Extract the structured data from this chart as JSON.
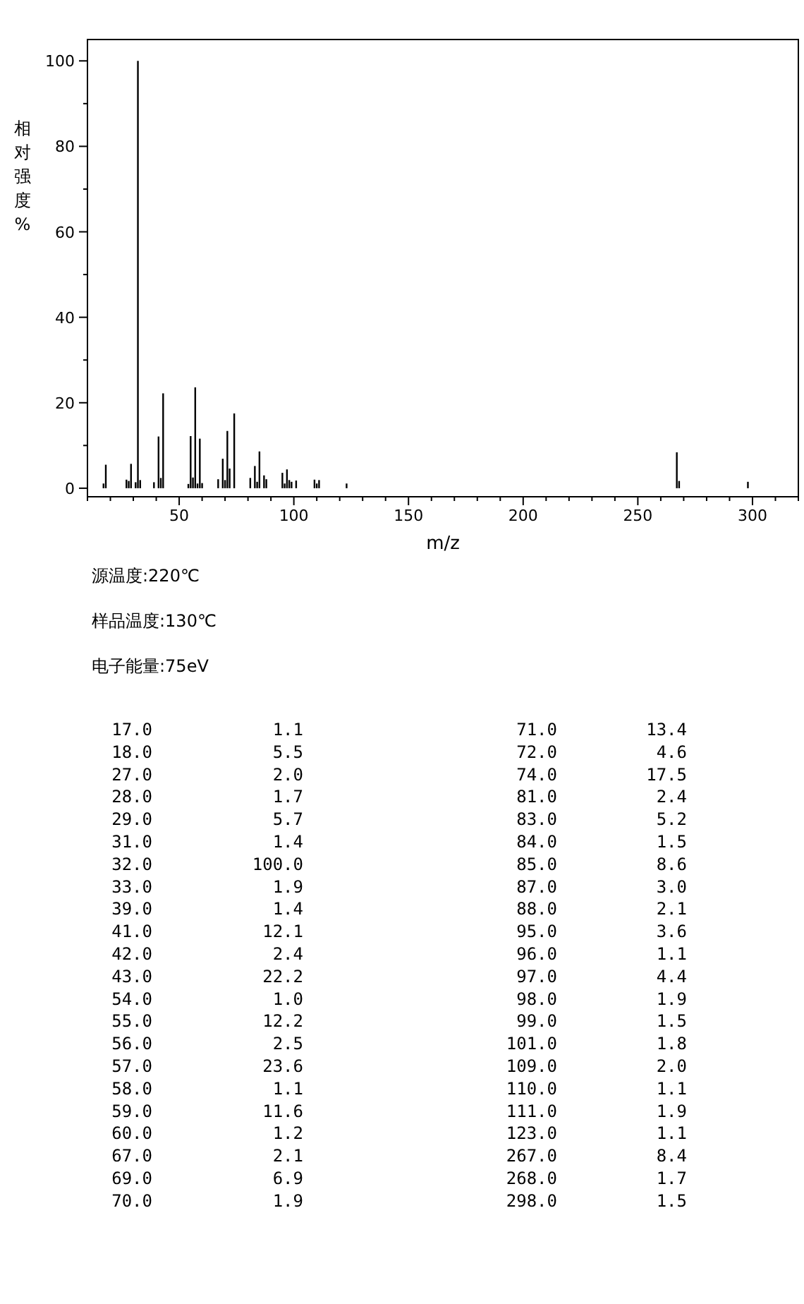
{
  "chart_data": {
    "type": "bar",
    "xlabel": "m/z",
    "ylabel": "相对强度%",
    "x": [
      17,
      18,
      27,
      28,
      29,
      31,
      32,
      33,
      39,
      41,
      42,
      43,
      54,
      55,
      56,
      57,
      58,
      59,
      60,
      67,
      69,
      70,
      71,
      72,
      74,
      81,
      83,
      84,
      85,
      87,
      88,
      95,
      96,
      97,
      98,
      99,
      101,
      109,
      110,
      111,
      123,
      267,
      268,
      298
    ],
    "series": [
      {
        "color": "#000000",
        "values": [
          1.1,
          5.5,
          2.0,
          1.7,
          5.7,
          1.4,
          100.0,
          1.9,
          1.4,
          12.1,
          2.4,
          22.2,
          1.0,
          12.2,
          2.5,
          23.6,
          1.1,
          11.6,
          1.2,
          2.1,
          6.9,
          1.9,
          13.4,
          4.6,
          17.5,
          2.4,
          5.2,
          1.5,
          8.6,
          3.0,
          2.1,
          3.6,
          1.1,
          4.4,
          1.9,
          1.5,
          1.8,
          2.0,
          1.1,
          1.9,
          1.1,
          8.4,
          1.7,
          1.5
        ]
      }
    ],
    "xlim": [
      10,
      320
    ],
    "ylim": [
      -2,
      105
    ],
    "xticks": [
      {
        "value": 10,
        "label": null
      },
      {
        "value": 20,
        "label": null
      },
      {
        "value": 30,
        "label": null
      },
      {
        "value": 40,
        "label": null
      },
      50,
      {
        "value": 60,
        "label": null
      },
      {
        "value": 70,
        "label": null
      },
      {
        "value": 80,
        "label": null
      },
      {
        "value": 90,
        "label": null
      },
      100,
      {
        "value": 110,
        "label": null
      },
      {
        "value": 120,
        "label": null
      },
      {
        "value": 130,
        "label": null
      },
      {
        "value": 140,
        "label": null
      },
      150,
      {
        "value": 160,
        "label": null
      },
      {
        "value": 170,
        "label": null
      },
      {
        "value": 180,
        "label": null
      },
      {
        "value": 190,
        "label": null
      },
      200,
      {
        "value": 210,
        "label": null
      },
      {
        "value": 220,
        "label": null
      },
      {
        "value": 230,
        "label": null
      },
      {
        "value": 240,
        "label": null
      },
      250,
      {
        "value": 260,
        "label": null
      },
      {
        "value": 270,
        "label": null
      },
      {
        "value": 280,
        "label": null
      },
      {
        "value": 290,
        "label": null
      },
      300,
      {
        "value": 310,
        "label": null
      },
      {
        "value": 320,
        "label": null
      }
    ],
    "yticks": [
      0,
      {
        "value": 10,
        "label": null
      },
      20,
      {
        "value": 30,
        "label": null
      },
      40,
      {
        "value": 50,
        "label": null
      },
      60,
      {
        "value": 70,
        "label": null
      },
      80,
      {
        "value": 90,
        "label": null
      },
      100
    ],
    "annotations": [
      "源温度:220℃",
      "样品温度:130℃",
      "电子能量:75eV",
      "17.0",
      "1.1",
      "71.0",
      "13.4",
      "18.0",
      "5.5",
      "72.0",
      "4.6",
      "27.0",
      "2.0",
      "74.0",
      "17.5",
      "28.0",
      "1.7",
      "81.0",
      "2.4",
      "29.0",
      "5.7",
      "83.0",
      "5.2",
      "31.0",
      "1.4",
      "84.0",
      "1.5",
      "32.0",
      "100.0",
      "85.0",
      "8.6",
      "33.0",
      "1.9",
      "87.0",
      "3.0",
      "39.0",
      "1.4",
      "88.0",
      "2.1",
      "41.0",
      "12.1",
      "95.0",
      "3.6",
      "42.0",
      "2.4",
      "96.0",
      "1.1",
      "43.0",
      "22.2",
      "97.0",
      "4.4",
      "54.0",
      "1.0",
      "98.0",
      "1.9",
      "55.0",
      "12.2",
      "99.0",
      "1.5",
      "56.0",
      "2.5",
      "101.0",
      "1.8",
      "57.0",
      "23.6",
      "109.0",
      "2.0",
      "58.0",
      "1.1",
      "110.0",
      "1.1",
      "59.0",
      "11.6",
      "111.0",
      "1.9",
      "60.0",
      "1.2",
      "123.0",
      "1.1",
      "67.0",
      "2.1",
      "267.0",
      "8.4",
      "69.0",
      "6.9",
      "268.0",
      "1.7",
      "70.0",
      "1.9",
      "298.0",
      "1.5"
    ]
  }
}
